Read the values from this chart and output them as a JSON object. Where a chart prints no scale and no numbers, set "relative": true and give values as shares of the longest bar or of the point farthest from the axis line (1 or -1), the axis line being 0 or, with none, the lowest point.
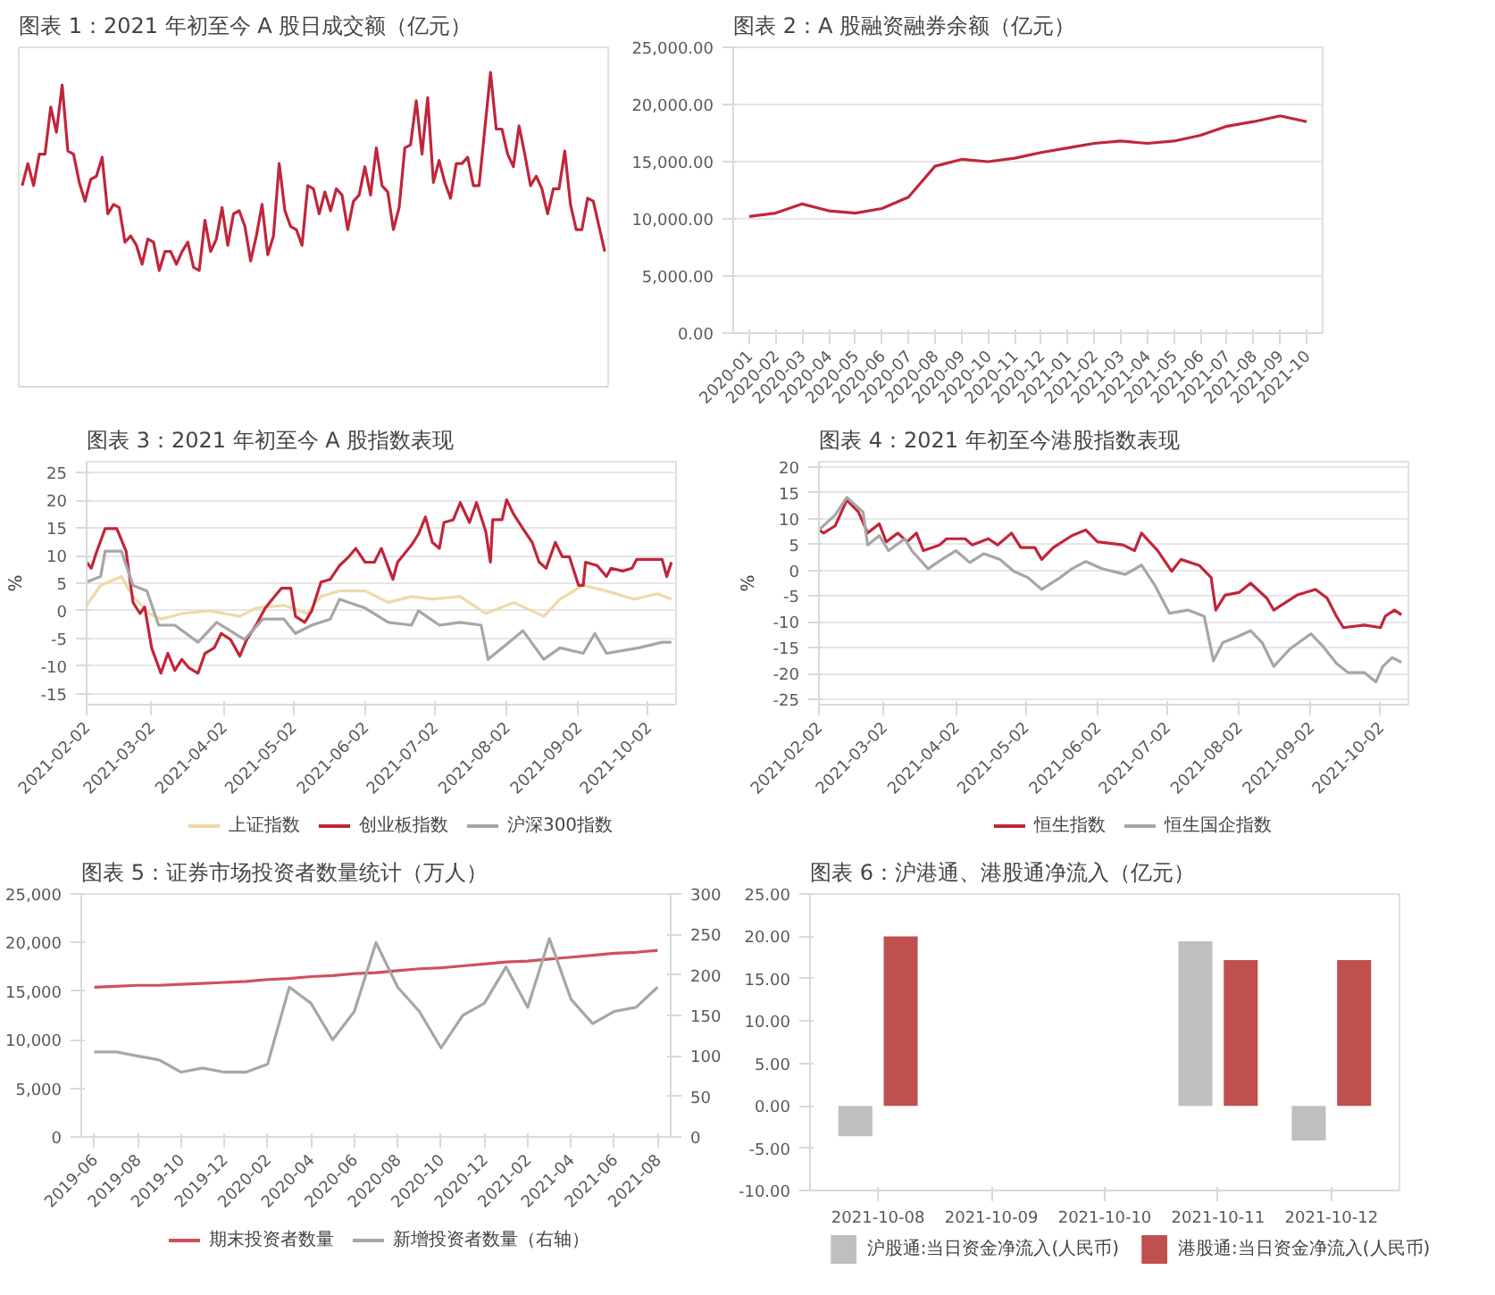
{
  "chart_data": [
    {
      "type": "line",
      "title": "图表 1：2021 年初至今 A 股日成交额（亿元）",
      "relative": true,
      "grid": false,
      "categories": [
        null,
        null,
        null,
        null,
        null,
        null,
        null,
        null,
        null,
        null,
        null,
        null,
        null,
        null,
        null,
        null,
        null,
        null,
        null,
        null,
        null,
        null,
        null,
        null,
        null,
        null,
        null,
        null,
        null,
        null,
        null,
        null,
        null,
        null,
        null,
        null,
        null,
        null,
        null,
        null,
        null,
        null,
        null,
        null,
        null,
        null,
        null,
        null,
        null,
        null,
        null,
        null,
        null,
        null,
        null,
        null,
        null,
        null,
        null,
        null,
        null,
        null,
        null,
        null,
        null,
        null,
        null,
        null,
        null,
        null,
        null,
        null,
        null,
        null,
        null,
        null,
        null,
        null,
        null,
        null,
        null,
        null,
        null,
        null,
        null,
        null,
        null,
        null,
        null,
        null,
        null,
        null,
        null,
        null,
        null,
        null,
        null,
        null,
        null,
        null,
        null,
        null,
        null
      ],
      "series": [
        {
          "color": "#c0263a",
          "values": [
            0.64,
            0.71,
            0.64,
            0.74,
            0.74,
            0.89,
            0.81,
            0.96,
            0.75,
            0.74,
            0.65,
            0.59,
            0.66,
            0.67,
            0.73,
            0.55,
            0.58,
            0.57,
            0.46,
            0.48,
            0.45,
            0.39,
            0.47,
            0.46,
            0.37,
            0.43,
            0.43,
            0.39,
            0.43,
            0.46,
            0.38,
            0.37,
            0.53,
            0.43,
            0.47,
            0.57,
            0.45,
            0.55,
            0.56,
            0.51,
            0.4,
            0.48,
            0.58,
            0.42,
            0.48,
            0.71,
            0.56,
            0.51,
            0.5,
            0.45,
            0.64,
            0.63,
            0.55,
            0.62,
            0.56,
            0.63,
            0.61,
            0.5,
            0.59,
            0.61,
            0.7,
            0.61,
            0.76,
            0.64,
            0.62,
            0.5,
            0.57,
            0.76,
            0.77,
            0.91,
            0.74,
            0.92,
            0.65,
            0.72,
            0.65,
            0.6,
            0.71,
            0.71,
            0.73,
            0.64,
            0.64,
            0.82,
            1,
            0.82,
            0.82,
            0.74,
            0.7,
            0.83,
            0.74,
            0.64,
            0.67,
            0.63,
            0.55,
            0.63,
            0.63,
            0.75,
            0.58,
            0.5,
            0.5,
            0.6,
            0.59,
            0.51,
            0.43
          ]
        }
      ]
    },
    {
      "type": "line",
      "title": "图表 2：A 股融资融券余额（亿元）",
      "grid": "y",
      "categories": [
        "2020-01",
        "2020-02",
        "2020-03",
        "2020-04",
        "2020-05",
        "2020-06",
        "2020-07",
        "2020-08",
        "2020-09",
        "2020-10",
        "2020-11",
        "2020-12",
        "2021-01",
        "2021-02",
        "2021-03",
        "2021-04",
        "2021-05",
        "2021-06",
        "2021-07",
        "2021-08",
        "2021-09",
        "2021-10"
      ],
      "ylim": [
        0,
        25000
      ],
      "yticks": [
        {
          "value": 0,
          "label": "0.00"
        },
        {
          "value": 5000,
          "label": "5,000.00"
        },
        {
          "value": 10000,
          "label": "10,000.00"
        },
        {
          "value": 15000,
          "label": "15,000.00"
        },
        {
          "value": 20000,
          "label": "20,000.00"
        },
        {
          "value": 25000,
          "label": "25,000.00"
        }
      ],
      "series": [
        {
          "color": "#c0263a",
          "values": [
            10200,
            10500,
            11300,
            10700,
            10500,
            10900,
            11900,
            14600,
            15200,
            15000,
            15300,
            15800,
            16200,
            16600,
            16800,
            16600,
            16800,
            17300,
            18100,
            18500,
            19000,
            18500
          ]
        }
      ]
    },
    {
      "type": "line",
      "title": "图表 3：2021 年初至今 A 股指数表现",
      "ylabel": "%",
      "grid": "y",
      "legend": "bottom",
      "xlim": [
        "2021-02-02",
        "2021-10-14"
      ],
      "ylim": [
        -17,
        27
      ],
      "xticks": [
        "2021-02-02",
        "2021-03-02",
        "2021-04-02",
        "2021-05-02",
        "2021-06-02",
        "2021-07-02",
        "2021-08-02",
        "2021-09-02",
        "2021-10-02"
      ],
      "yticks": [
        25,
        20,
        15,
        10,
        5,
        0,
        -5,
        -10,
        -15
      ],
      "series": [
        {
          "name": "上证指数",
          "color": "#f0d9a8",
          "x": [
            "2021-02-02",
            "2021-02-08",
            "2021-02-17",
            "2021-02-22",
            "2021-03-01",
            "2021-03-06",
            "2021-03-15",
            "2021-03-27",
            "2021-04-09",
            "2021-04-16",
            "2021-04-28",
            "2021-05-08",
            "2021-05-14",
            "2021-05-22",
            "2021-06-02",
            "2021-06-12",
            "2021-06-22",
            "2021-07-01",
            "2021-07-13",
            "2021-07-24",
            "2021-08-05",
            "2021-08-18",
            "2021-08-25",
            "2021-09-04",
            "2021-09-14",
            "2021-09-26",
            "2021-10-06",
            "2021-10-12"
          ],
          "values": [
            1.0,
            4.6,
            6.2,
            2.6,
            -0.5,
            -1.5,
            -0.5,
            0,
            -1.0,
            0.5,
            1.0,
            -0.5,
            2.6,
            3.6,
            3.6,
            1.5,
            2.6,
            2.1,
            2.6,
            -0.5,
            1.5,
            -1.0,
            2.1,
            4.6,
            3.6,
            2.1,
            3.1,
            2.1
          ]
        },
        {
          "name": "创业板指数",
          "color": "#c0263a",
          "x": [
            "2021-02-02",
            "2021-02-04",
            "2021-02-06",
            "2021-02-10",
            "2021-02-15",
            "2021-02-19",
            "2021-02-22",
            "2021-02-25",
            "2021-02-27",
            "2021-03-02",
            "2021-03-06",
            "2021-03-09",
            "2021-03-12",
            "2021-03-15",
            "2021-03-18",
            "2021-03-22",
            "2021-03-25",
            "2021-03-29",
            "2021-04-01",
            "2021-04-05",
            "2021-04-09",
            "2021-04-12",
            "2021-04-16",
            "2021-04-20",
            "2021-04-23",
            "2021-04-27",
            "2021-05-01",
            "2021-05-03",
            "2021-05-07",
            "2021-05-10",
            "2021-05-14",
            "2021-05-18",
            "2021-05-22",
            "2021-05-26",
            "2021-05-29",
            "2021-06-02",
            "2021-06-06",
            "2021-06-09",
            "2021-06-14",
            "2021-06-16",
            "2021-06-22",
            "2021-06-25",
            "2021-06-28",
            "2021-07-01",
            "2021-07-04",
            "2021-07-06",
            "2021-07-10",
            "2021-07-13",
            "2021-07-17",
            "2021-07-20",
            "2021-07-24",
            "2021-07-26",
            "2021-07-27",
            "2021-07-31",
            "2021-08-02",
            "2021-08-05",
            "2021-08-09",
            "2021-08-13",
            "2021-08-16",
            "2021-08-19",
            "2021-08-23",
            "2021-08-26",
            "2021-08-29",
            "2021-09-02",
            "2021-09-04",
            "2021-09-05",
            "2021-09-10",
            "2021-09-14",
            "2021-09-16",
            "2021-09-21",
            "2021-09-25",
            "2021-09-27",
            "2021-10-08",
            "2021-10-10",
            "2021-10-12"
          ],
          "values": [
            8.8,
            7.7,
            10.3,
            14.9,
            14.9,
            10.8,
            1.5,
            -0.5,
            0.7,
            -6.7,
            -11.3,
            -7.7,
            -10.8,
            -8.8,
            -10.3,
            -11.3,
            -7.7,
            -6.7,
            -4.1,
            -5.2,
            -8.2,
            -5.2,
            -2.6,
            0.5,
            2.1,
            4.1,
            4.1,
            -1.0,
            -2.1,
            0,
            5.2,
            5.7,
            8.2,
            9.8,
            11.3,
            8.8,
            8.8,
            11.3,
            5.7,
            8.8,
            11.9,
            13.9,
            17.0,
            12.4,
            11.3,
            16.0,
            16.5,
            19.6,
            16.0,
            19.6,
            14.4,
            8.8,
            16.5,
            16.5,
            20.1,
            17.5,
            14.9,
            12.4,
            8.8,
            7.7,
            12.4,
            9.8,
            9.8,
            4.6,
            4.6,
            8.8,
            8.2,
            6.2,
            7.7,
            7.2,
            7.7,
            9.3,
            9.3,
            6.2,
            8.8
          ]
        },
        {
          "name": "沪深300指数",
          "color": "#a6a6a6",
          "x": [
            "2021-02-02",
            "2021-02-08",
            "2021-02-10",
            "2021-02-17",
            "2021-02-22",
            "2021-02-28",
            "2021-03-05",
            "2021-03-12",
            "2021-03-22",
            "2021-03-30",
            "2021-04-11",
            "2021-04-19",
            "2021-04-28",
            "2021-05-03",
            "2021-05-10",
            "2021-05-18",
            "2021-05-22",
            "2021-06-02",
            "2021-06-12",
            "2021-06-22",
            "2021-06-25",
            "2021-07-04",
            "2021-07-13",
            "2021-07-22",
            "2021-07-25",
            "2021-08-03",
            "2021-08-09",
            "2021-08-18",
            "2021-08-25",
            "2021-09-04",
            "2021-09-09",
            "2021-09-14",
            "2021-09-28",
            "2021-10-08",
            "2021-10-12"
          ],
          "values": [
            5.2,
            6.2,
            10.8,
            10.8,
            4.6,
            3.6,
            -2.6,
            -2.6,
            -5.7,
            -2.1,
            -5.2,
            -1.5,
            -1.5,
            -4.1,
            -2.6,
            -1.5,
            2.1,
            0.5,
            -2.1,
            -2.6,
            0,
            -2.6,
            -2.1,
            -2.6,
            -8.8,
            -5.7,
            -3.6,
            -8.8,
            -6.7,
            -7.7,
            -4.1,
            -7.7,
            -6.7,
            -5.7,
            -5.7
          ]
        }
      ]
    },
    {
      "type": "line",
      "title": "图表 4：2021 年初至今港股指数表现",
      "ylabel": "%",
      "grid": "y",
      "legend": "bottom",
      "xlim": [
        "2021-02-02",
        "2021-10-14"
      ],
      "ylim": [
        -26,
        21
      ],
      "xticks": [
        "2021-02-02",
        "2021-03-02",
        "2021-04-02",
        "2021-05-02",
        "2021-06-02",
        "2021-07-02",
        "2021-08-02",
        "2021-09-02",
        "2021-10-02"
      ],
      "yticks": [
        20,
        15,
        10,
        5,
        0,
        -5,
        -10,
        -15,
        -20,
        -25
      ],
      "series": [
        {
          "name": "恒生指数",
          "color": "#c0263a",
          "x": [
            "2021-02-02",
            "2021-02-04",
            "2021-02-09",
            "2021-02-14",
            "2021-02-19",
            "2021-02-23",
            "2021-02-28",
            "2021-03-03",
            "2021-03-08",
            "2021-03-12",
            "2021-03-16",
            "2021-03-19",
            "2021-03-26",
            "2021-03-29",
            "2021-04-06",
            "2021-04-09",
            "2021-04-16",
            "2021-04-20",
            "2021-04-26",
            "2021-04-30",
            "2021-05-06",
            "2021-05-09",
            "2021-05-14",
            "2021-05-22",
            "2021-05-28",
            "2021-06-02",
            "2021-06-13",
            "2021-06-18",
            "2021-06-21",
            "2021-06-28",
            "2021-07-04",
            "2021-07-08",
            "2021-07-16",
            "2021-07-21",
            "2021-07-23",
            "2021-07-27",
            "2021-08-02",
            "2021-08-07",
            "2021-08-14",
            "2021-08-17",
            "2021-08-27",
            "2021-09-04",
            "2021-09-09",
            "2021-09-13",
            "2021-09-16",
            "2021-09-25",
            "2021-10-02",
            "2021-10-04",
            "2021-10-08",
            "2021-10-11"
          ],
          "values": [
            7.8,
            7.2,
            8.6,
            13.6,
            11.3,
            7.2,
            9.0,
            5.5,
            7.2,
            5.5,
            7.2,
            3.8,
            4.9,
            6.1,
            6.1,
            4.9,
            6.1,
            4.9,
            7.2,
            4.4,
            4.4,
            2.1,
            4.4,
            6.7,
            7.8,
            5.5,
            4.9,
            3.8,
            7.2,
            3.8,
            -0.2,
            2.1,
            0.9,
            -1.4,
            -7.7,
            -4.8,
            -4.3,
            -2.5,
            -5.4,
            -7.7,
            -4.8,
            -3.7,
            -5.4,
            -8.9,
            -11.1,
            -10.6,
            -11.1,
            -8.9,
            -7.7,
            -8.6
          ]
        },
        {
          "name": "恒生国企指数",
          "color": "#a6a6a6",
          "x": [
            "2021-02-02",
            "2021-02-09",
            "2021-02-14",
            "2021-02-21",
            "2021-02-23",
            "2021-02-28",
            "2021-03-04",
            "2021-03-11",
            "2021-03-14",
            "2021-03-21",
            "2021-03-27",
            "2021-04-02",
            "2021-04-08",
            "2021-04-14",
            "2021-04-21",
            "2021-04-27",
            "2021-05-03",
            "2021-05-09",
            "2021-05-17",
            "2021-05-22",
            "2021-05-28",
            "2021-06-04",
            "2021-06-14",
            "2021-06-21",
            "2021-06-27",
            "2021-07-03",
            "2021-07-11",
            "2021-07-18",
            "2021-07-22",
            "2021-07-26",
            "2021-08-01",
            "2021-08-07",
            "2021-08-12",
            "2021-08-17",
            "2021-08-24",
            "2021-09-02",
            "2021-09-07",
            "2021-09-13",
            "2021-09-18",
            "2021-09-25",
            "2021-09-30",
            "2021-10-03",
            "2021-10-07",
            "2021-10-11"
          ],
          "values": [
            7.8,
            10.7,
            14.1,
            11.3,
            4.9,
            6.7,
            3.8,
            6.1,
            3.8,
            0.3,
            2.1,
            3.8,
            1.5,
            3.2,
            2.1,
            -0.2,
            -1.4,
            -3.7,
            -1.4,
            0.3,
            1.7,
            0.3,
            -0.8,
            1.0,
            -3.1,
            -8.3,
            -7.7,
            -8.9,
            -17.5,
            -14.0,
            -12.9,
            -11.7,
            -14.0,
            -18.6,
            -15.2,
            -12.3,
            -14.6,
            -18.0,
            -19.8,
            -19.8,
            -21.6,
            -18.6,
            -16.9,
            -17.8
          ]
        }
      ]
    },
    {
      "type": "line",
      "title": "图表 5：证券市场投资者数量统计（万人）",
      "grid": false,
      "legend": "bottom",
      "categories": [
        "2019-06",
        null,
        "2019-08",
        null,
        "2019-10",
        null,
        "2019-12",
        null,
        "2020-02",
        null,
        "2020-04",
        null,
        "2020-06",
        null,
        "2020-08",
        null,
        "2020-10",
        null,
        "2020-12",
        null,
        "2021-02",
        null,
        "2021-04",
        null,
        "2021-06",
        null,
        "2021-08"
      ],
      "ylim": [
        0,
        25000
      ],
      "yticks": [
        0,
        {
          "value": 5000,
          "label": "5,000"
        },
        {
          "value": 10000,
          "label": "10,000"
        },
        {
          "value": 15000,
          "label": "15,000"
        },
        {
          "value": 20000,
          "label": "20,000"
        },
        {
          "value": 25000,
          "label": "25,000"
        }
      ],
      "y2lim": [
        0,
        300
      ],
      "y2ticks": [
        0,
        50,
        100,
        150,
        200,
        250,
        300
      ],
      "series": [
        {
          "name": "期末投资者数量",
          "color": "#d0505e",
          "values": [
            15400,
            15500,
            15600,
            15600,
            15700,
            15800,
            15900,
            16000,
            16200,
            16300,
            16500,
            16600,
            16800,
            16900,
            17100,
            17300,
            17400,
            17600,
            17800,
            18000,
            18100,
            18300,
            18500,
            18700,
            18900,
            19000,
            19200
          ]
        },
        {
          "name": "新增投资者数量（右轴）",
          "color": "#a6a6a6",
          "axis": "y2",
          "values": [
            105,
            105,
            100,
            95,
            80,
            85,
            80,
            80,
            90,
            185,
            165,
            120,
            155,
            240,
            185,
            155,
            110,
            150,
            165,
            210,
            160,
            245,
            170,
            140,
            155,
            160,
            185
          ]
        }
      ]
    },
    {
      "type": "bar",
      "title": "图表 6：沪港通、港股通净流入（亿元）",
      "grid": false,
      "legend": "bottom",
      "categories": [
        "2021-10-08",
        "2021-10-09",
        "2021-10-10",
        "2021-10-11",
        "2021-10-12"
      ],
      "ylim": [
        -10,
        25
      ],
      "yticks": [
        {
          "value": 25,
          "label": "25.00"
        },
        {
          "value": 20,
          "label": "20.00"
        },
        {
          "value": 15,
          "label": "15.00"
        },
        {
          "value": 10,
          "label": "10.00"
        },
        {
          "value": 5,
          "label": "5.00"
        },
        {
          "value": 0,
          "label": "0.00"
        },
        {
          "value": -5,
          "label": "-5.00"
        },
        {
          "value": -10,
          "label": "-10.00"
        }
      ],
      "series": [
        {
          "name": "沪股通:当日资金净流入(人民币)",
          "color": "#bfbfbf",
          "values": [
            -3.6,
            null,
            null,
            19.4,
            -4.1
          ]
        },
        {
          "name": "港股通:当日资金净流入(人民币)",
          "color": "#c0504d",
          "values": [
            20.0,
            null,
            null,
            17.2,
            17.2
          ]
        }
      ]
    }
  ]
}
